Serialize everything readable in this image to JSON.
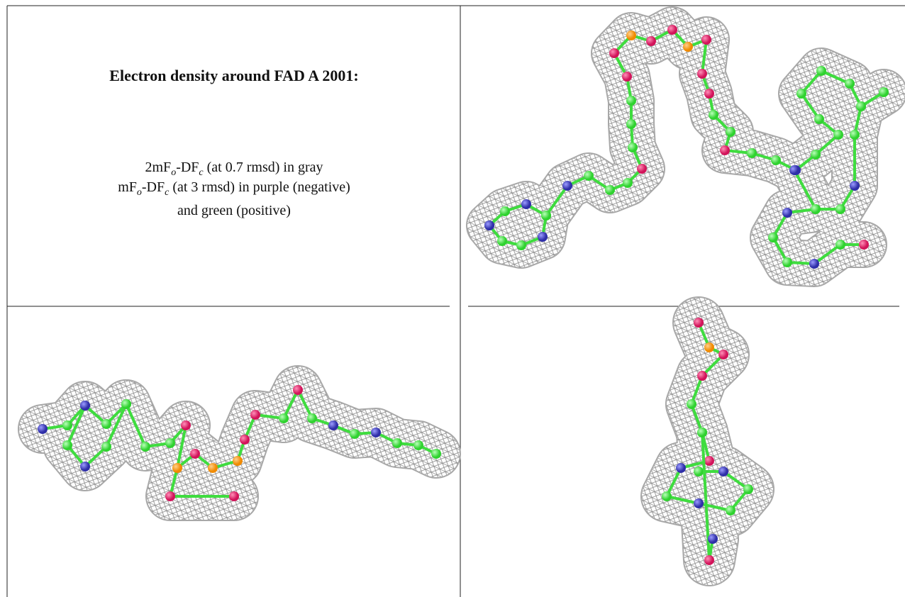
{
  "panel": {
    "title": "Electron density around FAD A 2001:",
    "lines": [
      [
        "2mF",
        "o",
        "-DF",
        "c",
        " (at 0.7 rmsd) in gray"
      ],
      [
        "mF",
        "o",
        "-DF",
        "c",
        " (at 3 rmsd) in purple (negative)"
      ],
      [
        "and green (positive)"
      ]
    ]
  }
}
